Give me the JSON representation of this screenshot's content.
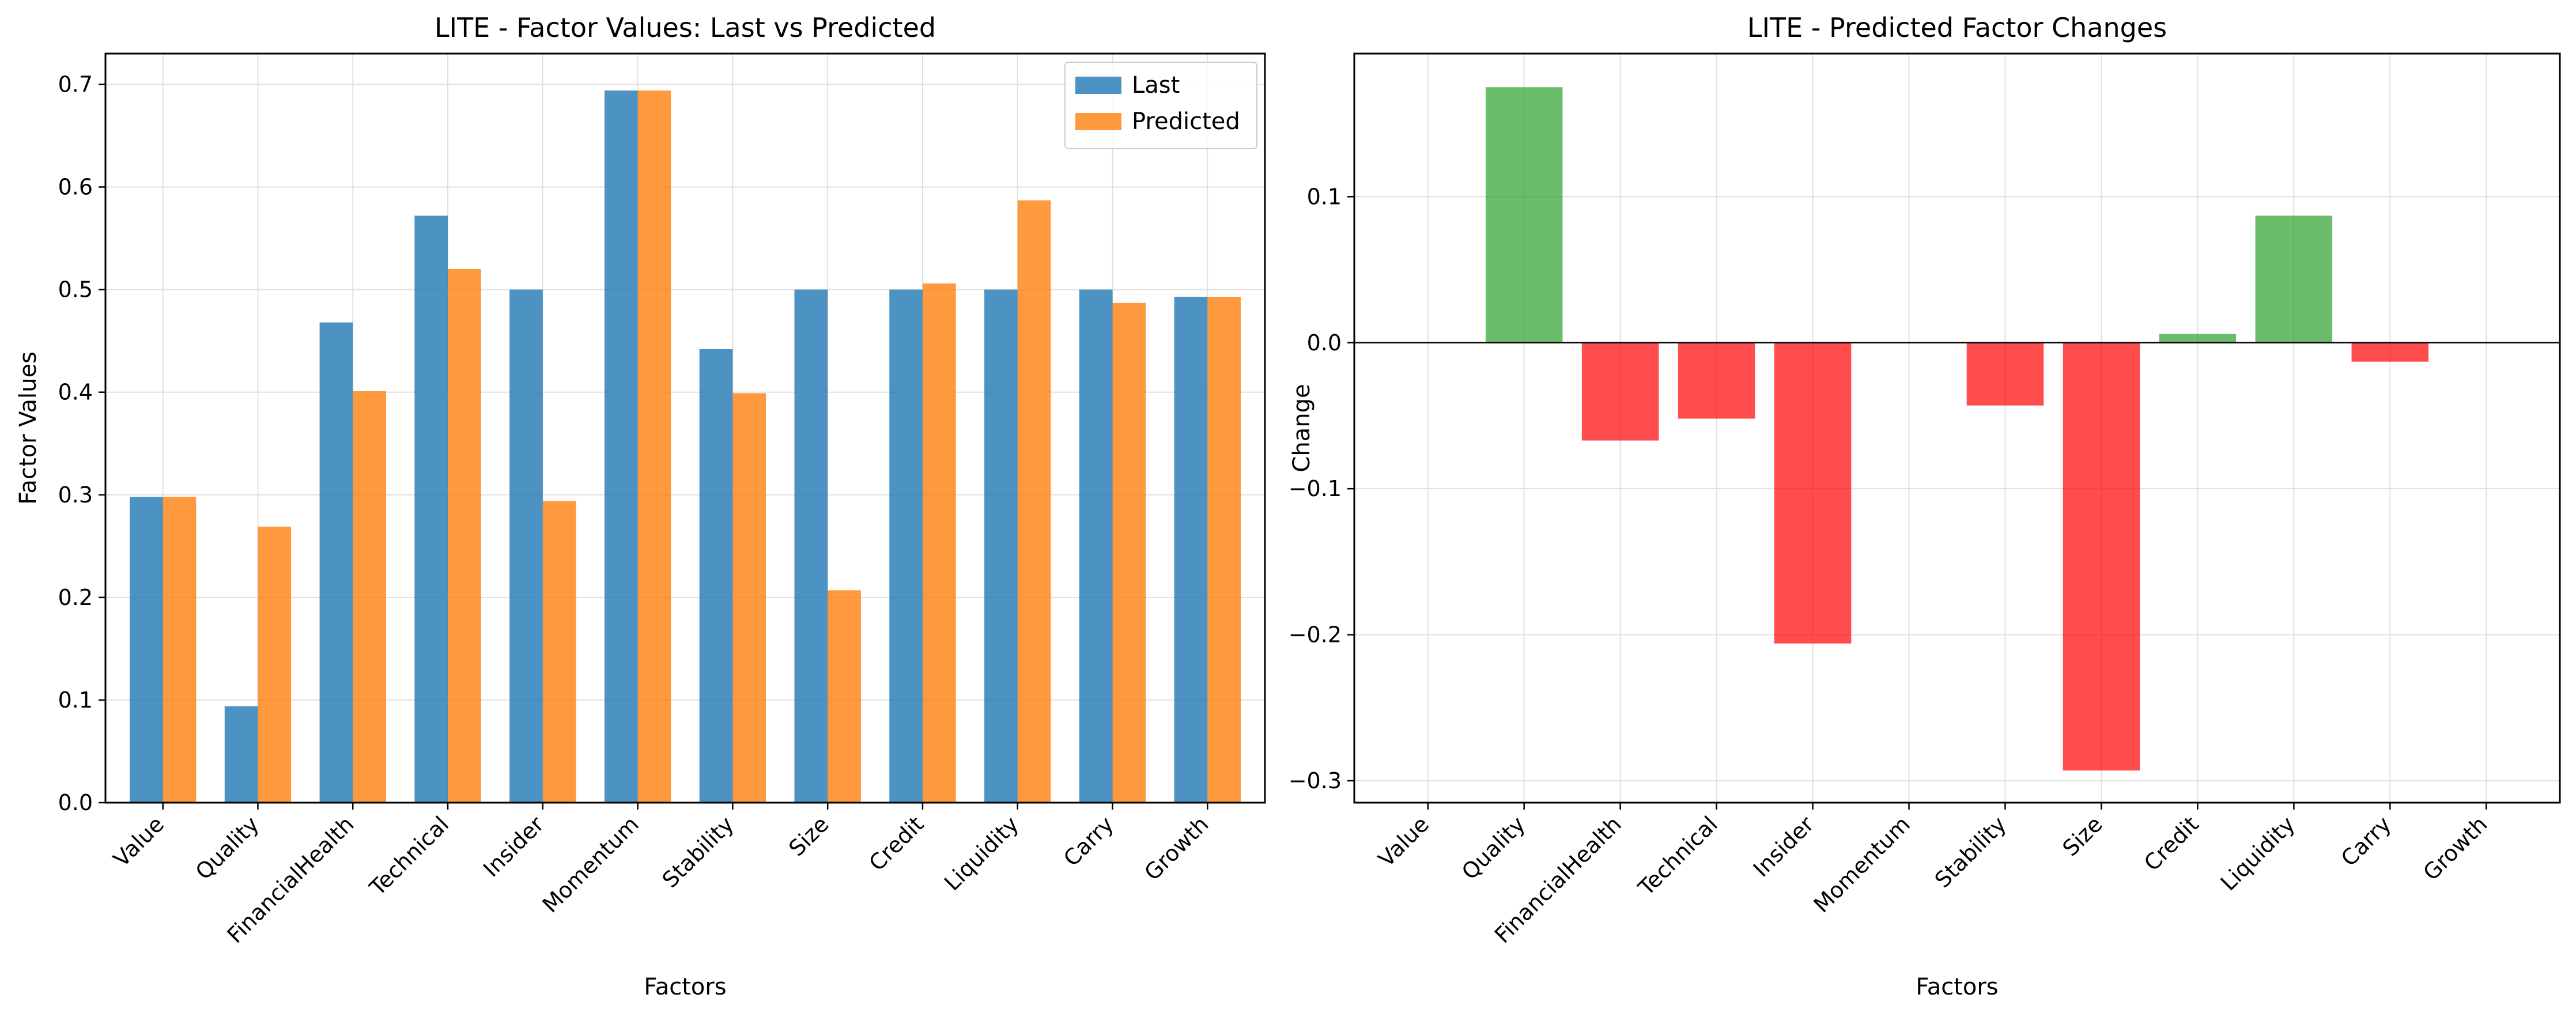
{
  "colors": {
    "last": "#1f77b4",
    "predicted": "#ff7f0e",
    "positive": "#2ca02c",
    "negative": "#ff0000",
    "grid": "#e0e0e0"
  },
  "chart_data": [
    {
      "type": "bar",
      "title": "LITE - Factor Values: Last vs Predicted",
      "xlabel": "Factors",
      "ylabel": "Factor Values",
      "categories": [
        "Value",
        "Quality",
        "FinancialHealth",
        "Technical",
        "Insider",
        "Momentum",
        "Stability",
        "Size",
        "Credit",
        "Liquidity",
        "Carry",
        "Growth"
      ],
      "series": [
        {
          "name": "Last",
          "values": [
            0.298,
            0.094,
            0.468,
            0.572,
            0.5,
            0.694,
            0.442,
            0.5,
            0.5,
            0.5,
            0.5,
            0.493
          ]
        },
        {
          "name": "Predicted",
          "values": [
            0.298,
            0.269,
            0.401,
            0.52,
            0.294,
            0.694,
            0.399,
            0.207,
            0.506,
            0.587,
            0.487,
            0.493
          ]
        }
      ],
      "ylim": [
        0,
        0.73
      ],
      "yticks": [
        "0.0",
        "0.1",
        "0.2",
        "0.3",
        "0.4",
        "0.5",
        "0.6",
        "0.7"
      ],
      "grid": true,
      "legend": "upper right"
    },
    {
      "type": "bar",
      "title": "LITE - Predicted Factor Changes",
      "xlabel": "Factors",
      "ylabel": "Change",
      "categories": [
        "Value",
        "Quality",
        "FinancialHealth",
        "Technical",
        "Insider",
        "Momentum",
        "Stability",
        "Size",
        "Credit",
        "Liquidity",
        "Carry",
        "Growth"
      ],
      "values": [
        0.0,
        0.175,
        -0.067,
        -0.052,
        -0.206,
        0.0,
        -0.043,
        -0.293,
        0.006,
        0.087,
        -0.013,
        0.0
      ],
      "ylim": [
        -0.315,
        0.198
      ],
      "yticks": [
        "−0.3",
        "−0.2",
        "−0.1",
        "0.0",
        "0.1"
      ],
      "grid": true
    }
  ]
}
